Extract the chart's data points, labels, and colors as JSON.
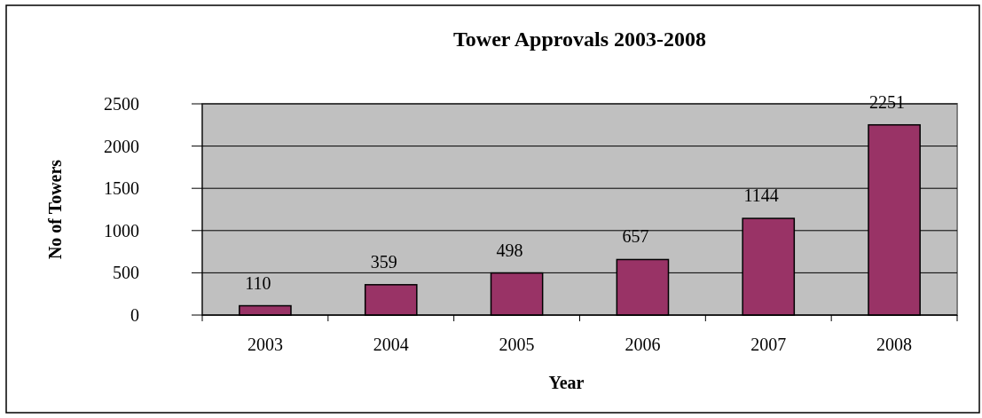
{
  "chart_data": {
    "type": "bar",
    "title": "Tower Approvals 2003-2008",
    "xlabel": "Year",
    "ylabel": "No of Towers",
    "categories": [
      "2003",
      "2004",
      "2005",
      "2006",
      "2007",
      "2008"
    ],
    "values": [
      110,
      359,
      498,
      657,
      1144,
      2251
    ],
    "color": "#993366",
    "ylim": [
      0,
      2500
    ],
    "yticks": [
      0,
      500,
      1000,
      1500,
      2000,
      2500
    ],
    "grid": "y",
    "data_labels": true
  }
}
